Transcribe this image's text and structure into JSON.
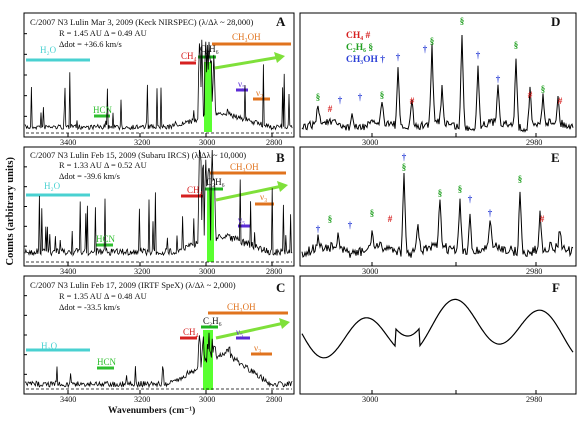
{
  "figure": {
    "ylabel": "Counts (arbitrary units)",
    "xlabel": "Wavenumbers (cm⁻¹)",
    "panels_left": [
      {
        "label": "A",
        "header": "C/2007 N3 Lulin Mar 3, 2009 (Keck NIRSPEC) (λ/Δλ ~ 28,000)",
        "line2": "R = 1.45 AU     Δ = 0.49 AU",
        "line3": "Δdot = +36.6 km/s",
        "ticks": [
          "3400",
          "3200",
          "3000",
          "2800"
        ]
      },
      {
        "label": "B",
        "header": "C/2007 N3 Lulin Feb 15, 2009 (Subaru IRCS) (λ/Δλ ~ 10,000)",
        "line2": "R = 1.33 AU     Δ = 0.52 AU",
        "line3": "Δdot = -39.6 km/s",
        "ticks": [
          "3400",
          "3200",
          "3000",
          "2800"
        ]
      },
      {
        "label": "C",
        "header": "C/2007 N3 Lulin Feb 17, 2009 (IRTF SpeX) (λ/Δλ ~ 2,000)",
        "line2": "R = 1.35 AU     Δ = 0.48 AU",
        "line3": "Δdot = -33.5 km/s",
        "ticks": [
          "3400",
          "3200",
          "3000",
          "2800"
        ]
      }
    ],
    "panels_right": [
      {
        "label": "D",
        "ticks": [
          "3000",
          "2980"
        ]
      },
      {
        "label": "E",
        "ticks": [
          "3000",
          "2980"
        ]
      },
      {
        "label": "F",
        "ticks": [
          "3000",
          "2980"
        ]
      }
    ],
    "species": {
      "h2o": "H₂O",
      "hcn": "HCN",
      "ch4": "CH₄",
      "c2h6": "C₂H₆",
      "ch3oh": "CH₃OH",
      "nu5": "ν₅",
      "nu3": "ν₃"
    },
    "legend": {
      "ch4": "CH₄  #",
      "c2h6": "C₂H₆  §",
      "ch3oh": "CH₃OH  †"
    },
    "marks": {
      "ch4": "#",
      "c2h6": "§",
      "ch3oh": "†"
    },
    "colors": {
      "h2o": "#49d1d1",
      "hcn": "#2fbf2f",
      "ch4": "#d62020",
      "c2h6": "#1fb51f",
      "ch3oh": "#e0731e",
      "nu5": "#5b2bd6",
      "nu3": "#e0731e",
      "arrow": "#7fe03a",
      "band": "#47ff1a",
      "legend_ch4": "#d62020",
      "legend_c2h6": "#22a022",
      "legend_ch3oh": "#2b3fd6"
    }
  }
}
